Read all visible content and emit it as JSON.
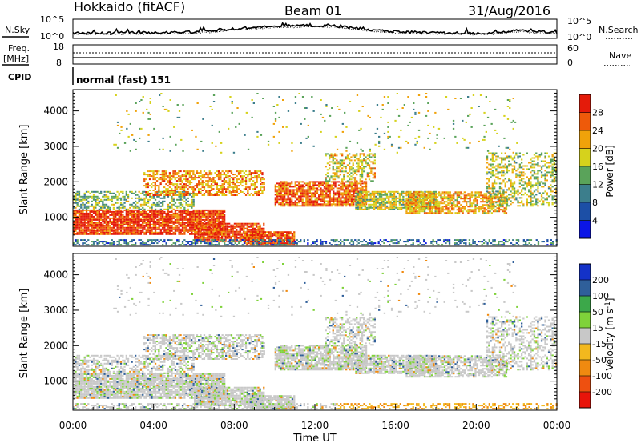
{
  "header": {
    "station": "Hokkaido (fitACF)",
    "beam": "Beam 01",
    "date": "31/Aug/2016"
  },
  "chart_data": [
    {
      "type": "line",
      "name": "noise-panel",
      "left_label": "N.Sky",
      "right_label": "N.Search",
      "left_ticks": [
        "10^5",
        "10^0"
      ],
      "right_ticks": [
        "10^5",
        "10^0"
      ],
      "profile_hours": [
        0,
        1,
        2,
        3,
        4,
        5,
        6,
        7,
        8,
        9,
        10,
        11,
        12,
        13,
        14,
        15,
        16,
        17,
        18,
        19,
        20,
        21,
        22,
        23,
        24
      ],
      "profile_fraction": [
        0.25,
        0.26,
        0.25,
        0.27,
        0.26,
        0.28,
        0.33,
        0.42,
        0.55,
        0.68,
        0.74,
        0.78,
        0.8,
        0.76,
        0.62,
        0.45,
        0.35,
        0.3,
        0.27,
        0.25,
        0.24,
        0.26,
        0.45,
        0.35,
        0.3
      ]
    },
    {
      "type": "line",
      "name": "frequency-panel",
      "left_label": "Freq.",
      "left_unit": "[MHz]",
      "left_ticks": [
        "18",
        "8"
      ],
      "right_label": "Nave",
      "right_ticks": [
        "60",
        "0"
      ],
      "cpid_label": "CPID",
      "cpid_text": "normal (fast) 151"
    },
    {
      "type": "heatmap",
      "name": "power-panel",
      "ylabel": "Slant Range [km]",
      "ylim": [
        180,
        4600
      ],
      "yticks": [
        1000,
        2000,
        3000,
        4000
      ],
      "colorbar_label": "Power [dB]",
      "colorbar_ticks": [
        "4",
        "8",
        "12",
        "16",
        "20",
        "24",
        "28"
      ],
      "colors": [
        "#0b16e6",
        "#1c4fa6",
        "#3c7e8c",
        "#5aa35a",
        "#d6d21c",
        "#f0a20a",
        "#ee5a0a",
        "#e41b0a"
      ]
    },
    {
      "type": "heatmap",
      "name": "velocity-panel",
      "ylabel": "Slant Range [km]",
      "ylim": [
        180,
        4600
      ],
      "yticks": [
        1000,
        2000,
        3000,
        4000
      ],
      "xlabel": "Time UT",
      "xticks": [
        "00:00",
        "04:00",
        "08:00",
        "12:00",
        "16:00",
        "20:00",
        "00:00"
      ],
      "colorbar_label": "Velocity [m s",
      "colorbar_sup": "-1",
      "colorbar_label_end": "]",
      "colorbar_ticks": [
        "-200",
        "-100",
        "-50",
        "-15",
        "15",
        "50",
        "100",
        "200"
      ],
      "colors": [
        "#e8140a",
        "#ee5010",
        "#f08a10",
        "#f2b81e",
        "#c8c8c8",
        "#7fd23a",
        "#3ca84a",
        "#2f5f9a",
        "#1432c8"
      ]
    }
  ]
}
